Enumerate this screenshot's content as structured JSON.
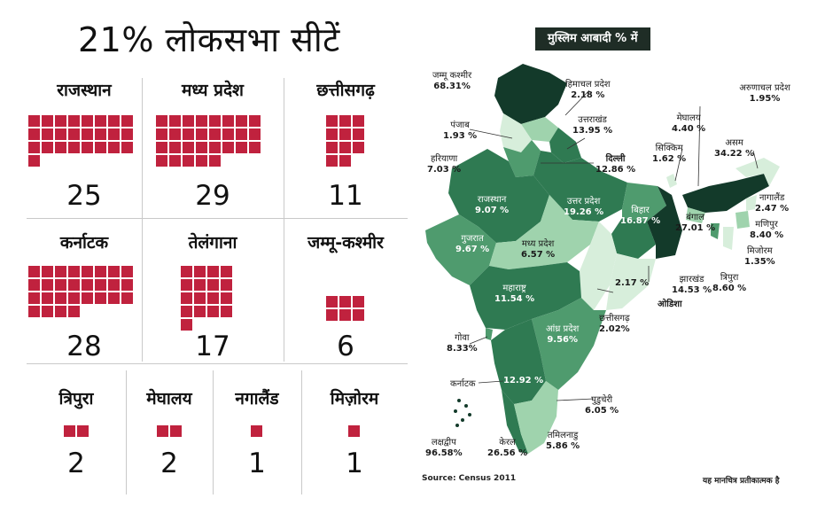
{
  "title": "21% लोकसभा सीटें",
  "colors": {
    "seat": "#c0223e",
    "dark": "#133a2a",
    "mid": "#2f7a52",
    "midlight": "#4f9b6e",
    "light": "#9fd3ad",
    "pale": "#d7eedb"
  },
  "seats": [
    {
      "name": "राजस्थान",
      "seats": 25
    },
    {
      "name": "मध्य प्रदेश",
      "seats": 29
    },
    {
      "name": "छत्तीसगढ़",
      "seats": 11
    },
    {
      "name": "कर्नाटक",
      "seats": 28
    },
    {
      "name": "तेलंगाना",
      "seats": 17
    },
    {
      "name": "जम्मू-कश्मीर",
      "seats": 6
    },
    {
      "name": "त्रिपुरा",
      "seats": 2
    },
    {
      "name": "मेघालय",
      "seats": 2
    },
    {
      "name": "नगालैंड",
      "seats": 1
    },
    {
      "name": "मिज़ोरम",
      "seats": 1
    }
  ],
  "map": {
    "title": "मुस्लिम आबादी % में",
    "labels": [
      {
        "name": "जम्मू कश्मीर",
        "value": "68.31%"
      },
      {
        "name": "हिमाचल प्रदेश",
        "value": "2.18 %"
      },
      {
        "name": "पंजाब",
        "value": "1.93 %"
      },
      {
        "name": "उत्तराखंड",
        "value": "13.95 %"
      },
      {
        "name": "हरियाणा",
        "value": "7.03 %"
      },
      {
        "name": "दिल्ली",
        "value": "12.86 %"
      },
      {
        "name": "राजस्थान",
        "value": "9.07 %"
      },
      {
        "name": "उत्तर प्रदेश",
        "value": "19.26 %"
      },
      {
        "name": "बिहार",
        "value": "16.87 %"
      },
      {
        "name": "गुजरात",
        "value": "9.67 %"
      },
      {
        "name": "मध्य प्रदेश",
        "value": "6.57 %"
      },
      {
        "name": "झारखंड",
        "value": "14.53 %"
      },
      {
        "name": "ओडिशा",
        "value": "2.17 %"
      },
      {
        "name": "महाराष्ट्र",
        "value": "11.54 %"
      },
      {
        "name": "छत्तीसगढ़",
        "value": "2.02%"
      },
      {
        "name": "आंध्र प्रदेश",
        "value": "9.56%"
      },
      {
        "name": "गोवा",
        "value": "8.33%"
      },
      {
        "name": "कर्नाटक",
        "value": "12.92 %"
      },
      {
        "name": "पुडुचेरी",
        "value": "6.05 %"
      },
      {
        "name": "लक्षद्वीप",
        "value": "96.58%"
      },
      {
        "name": "केरल",
        "value": "26.56 %"
      },
      {
        "name": "तमिलनाडु",
        "value": "5.86 %"
      },
      {
        "name": "मेघालय",
        "value": "4.40 %"
      },
      {
        "name": "अरुणाचल प्रदेश",
        "value": "1.95%"
      },
      {
        "name": "सिक्किम",
        "value": "1.62 %"
      },
      {
        "name": "असम",
        "value": "34.22 %"
      },
      {
        "name": "नागालैंड",
        "value": "2.47 %"
      },
      {
        "name": "बंगाल",
        "value": "27.01 %"
      },
      {
        "name": "मणिपुर",
        "value": "8.40 %"
      },
      {
        "name": "मिजोरम",
        "value": "1.35%"
      },
      {
        "name": "त्रिपुरा",
        "value": "8.60 %"
      }
    ]
  },
  "source": "Source: Census 2011",
  "note": "यह मानचित्र प्रतीकात्मक है"
}
